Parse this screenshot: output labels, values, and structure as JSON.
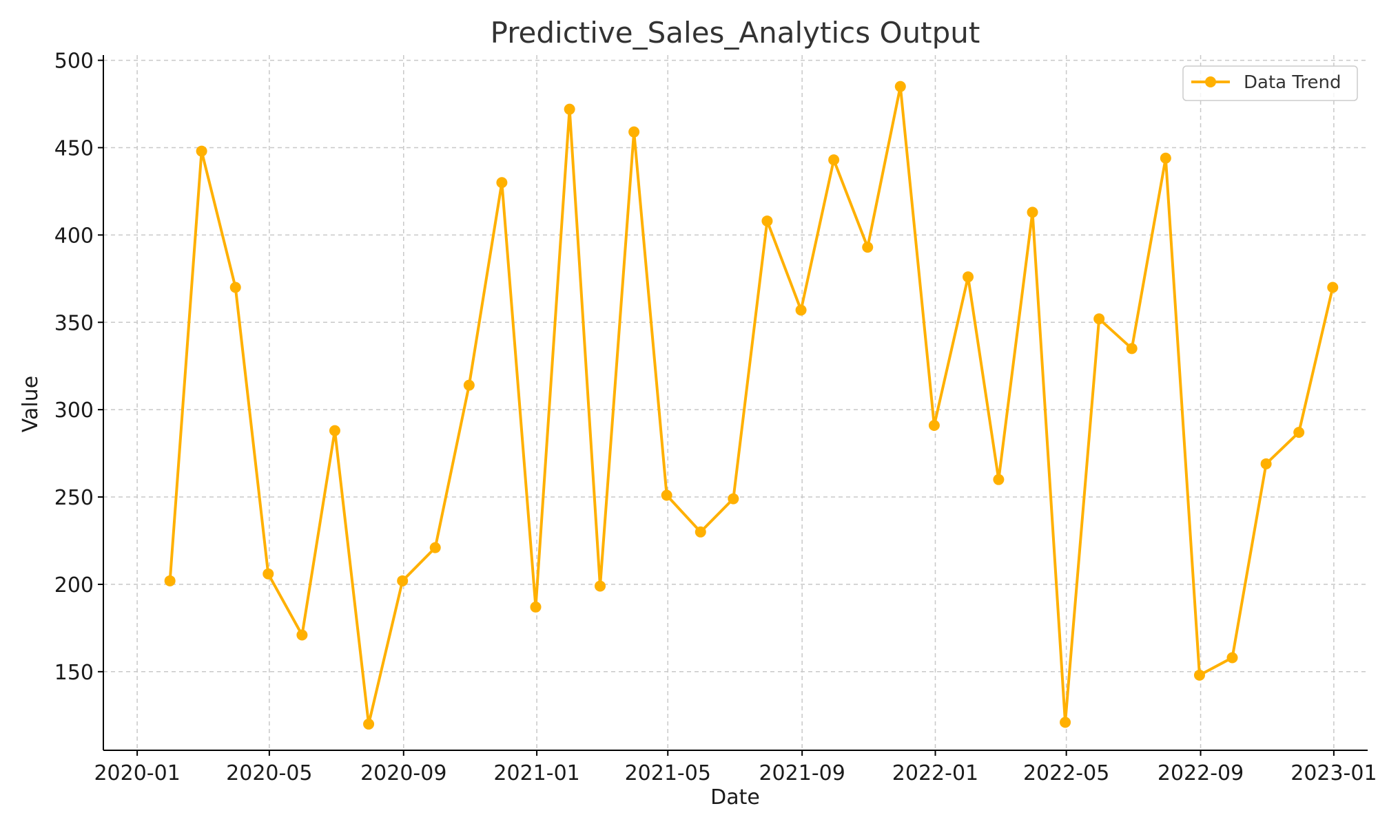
{
  "chart_data": {
    "type": "line",
    "title": "Predictive_Sales_Analytics Output",
    "xlabel": "Date",
    "ylabel": "Value",
    "xlim": [
      "2019-12-01",
      "2023-02-01"
    ],
    "ylim": [
      105,
      503
    ],
    "grid": true,
    "legend_position": "top-right",
    "x_ticks": [
      "2020-01-01",
      "2020-05-01",
      "2020-09-01",
      "2021-01-01",
      "2021-05-01",
      "2021-09-01",
      "2022-01-01",
      "2022-05-01",
      "2022-09-01",
      "2023-01-01"
    ],
    "x_tick_labels": [
      "2020-01",
      "2020-05",
      "2020-09",
      "2021-01",
      "2021-05",
      "2021-09",
      "2022-01",
      "2022-05",
      "2022-09",
      "2023-01"
    ],
    "y_ticks": [
      150,
      200,
      250,
      300,
      350,
      400,
      450,
      500
    ],
    "y_tick_labels": [
      "150",
      "200",
      "250",
      "300",
      "350",
      "400",
      "450",
      "500"
    ],
    "series": [
      {
        "name": "Data Trend",
        "color": "#FFB000",
        "marker": "circle",
        "x": [
          "2020-01-31",
          "2020-02-29",
          "2020-03-31",
          "2020-04-30",
          "2020-05-31",
          "2020-06-30",
          "2020-07-31",
          "2020-08-31",
          "2020-09-30",
          "2020-10-31",
          "2020-11-30",
          "2020-12-31",
          "2021-01-31",
          "2021-02-28",
          "2021-03-31",
          "2021-04-30",
          "2021-05-31",
          "2021-06-30",
          "2021-07-31",
          "2021-08-31",
          "2021-09-30",
          "2021-10-31",
          "2021-11-30",
          "2021-12-31",
          "2022-01-31",
          "2022-02-28",
          "2022-03-31",
          "2022-04-30",
          "2022-05-31",
          "2022-06-30",
          "2022-07-31",
          "2022-08-31",
          "2022-09-30",
          "2022-10-31",
          "2022-11-30",
          "2022-12-31"
        ],
        "values": [
          202,
          448,
          370,
          206,
          171,
          288,
          120,
          202,
          221,
          314,
          430,
          187,
          472,
          199,
          459,
          251,
          230,
          249,
          408,
          357,
          443,
          393,
          485,
          291,
          376,
          260,
          413,
          121,
          352,
          335,
          444,
          148,
          158,
          269,
          287,
          370
        ]
      }
    ]
  }
}
